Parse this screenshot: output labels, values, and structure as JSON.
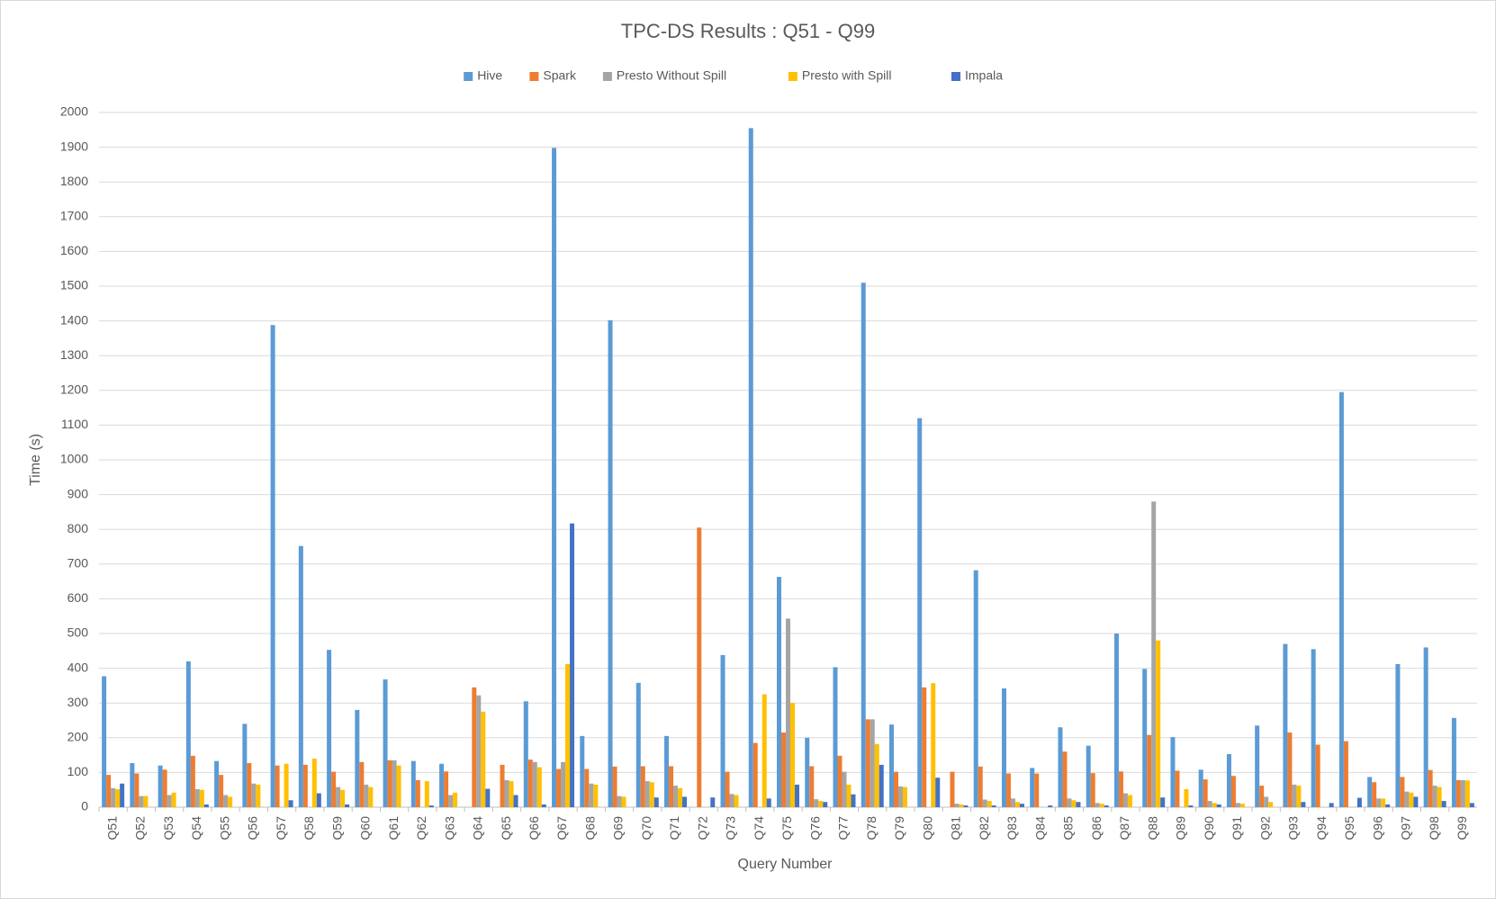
{
  "chart_data": {
    "type": "bar",
    "title": "TPC-DS Results : Q51 - Q99",
    "x_label": "Query Number",
    "y_label": "Time (s)",
    "categories": [
      "Q51",
      "Q52",
      "Q53",
      "Q54",
      "Q55",
      "Q56",
      "Q57",
      "Q58",
      "Q59",
      "Q60",
      "Q61",
      "Q62",
      "Q63",
      "Q64",
      "Q65",
      "Q66",
      "Q67",
      "Q68",
      "Q69",
      "Q70",
      "Q71",
      "Q72",
      "Q73",
      "Q74",
      "Q75",
      "Q76",
      "Q77",
      "Q78",
      "Q79",
      "Q80",
      "Q81",
      "Q82",
      "Q83",
      "Q84",
      "Q85",
      "Q86",
      "Q87",
      "Q88",
      "Q89",
      "Q90",
      "Q91",
      "Q92",
      "Q93",
      "Q94",
      "Q95",
      "Q96",
      "Q97",
      "Q98",
      "Q99"
    ],
    "series": [
      {
        "name": "Hive",
        "color": "#5b9bd5",
        "values": [
          377,
          127,
          120,
          420,
          133,
          240,
          1388,
          752,
          453,
          280,
          368,
          133,
          125,
          0,
          0,
          305,
          1898,
          205,
          1402,
          358,
          205,
          0,
          438,
          1955,
          663,
          200,
          403,
          1510,
          238,
          1120,
          0,
          682,
          342,
          113,
          230,
          177,
          500,
          398,
          202,
          108,
          153,
          235,
          470,
          455,
          1195,
          87,
          412,
          460,
          257
        ]
      },
      {
        "name": "Spark",
        "color": "#ed7d31",
        "values": [
          93,
          97,
          108,
          148,
          93,
          127,
          120,
          122,
          102,
          130,
          135,
          78,
          103,
          345,
          122,
          137,
          110,
          110,
          117,
          118,
          118,
          805,
          102,
          185,
          215,
          118,
          148,
          253,
          102,
          345,
          102,
          117,
          97,
          97,
          160,
          98,
          103,
          208,
          105,
          80,
          90,
          62,
          215,
          180,
          190,
          72,
          87,
          107,
          78
        ]
      },
      {
        "name": "Presto Without Spill",
        "color": "#a5a5a5",
        "values": [
          55,
          32,
          35,
          52,
          35,
          68,
          0,
          0,
          58,
          65,
          135,
          0,
          35,
          322,
          78,
          130,
          130,
          68,
          32,
          75,
          62,
          0,
          38,
          0,
          543,
          23,
          102,
          253,
          60,
          0,
          10,
          22,
          25,
          0,
          25,
          12,
          40,
          880,
          0,
          18,
          12,
          30,
          65,
          0,
          0,
          25,
          45,
          62,
          78
        ]
      },
      {
        "name": "Presto with Spill",
        "color": "#ffc000",
        "values": [
          52,
          32,
          42,
          50,
          30,
          65,
          125,
          140,
          50,
          58,
          120,
          75,
          42,
          275,
          75,
          115,
          412,
          65,
          30,
          72,
          55,
          0,
          35,
          325,
          300,
          18,
          65,
          182,
          58,
          357,
          8,
          18,
          15,
          0,
          20,
          10,
          35,
          480,
          52,
          12,
          10,
          15,
          62,
          0,
          0,
          25,
          42,
          58,
          77
        ]
      },
      {
        "name": "Impala",
        "color": "#4472c4",
        "values": [
          68,
          0,
          0,
          8,
          0,
          0,
          20,
          40,
          8,
          0,
          0,
          5,
          0,
          53,
          35,
          8,
          817,
          0,
          0,
          28,
          30,
          28,
          0,
          25,
          65,
          15,
          37,
          122,
          0,
          85,
          5,
          5,
          10,
          5,
          15,
          5,
          0,
          28,
          5,
          8,
          0,
          0,
          15,
          12,
          27,
          8,
          30,
          18,
          12
        ]
      }
    ],
    "ylim": [
      0,
      2000
    ],
    "yticks": [
      0,
      100,
      200,
      300,
      400,
      500,
      600,
      700,
      800,
      900,
      1000,
      1100,
      1200,
      1300,
      1400,
      1500,
      1600,
      1700,
      1800,
      1900,
      2000
    ],
    "grid": true,
    "legend": "top"
  }
}
